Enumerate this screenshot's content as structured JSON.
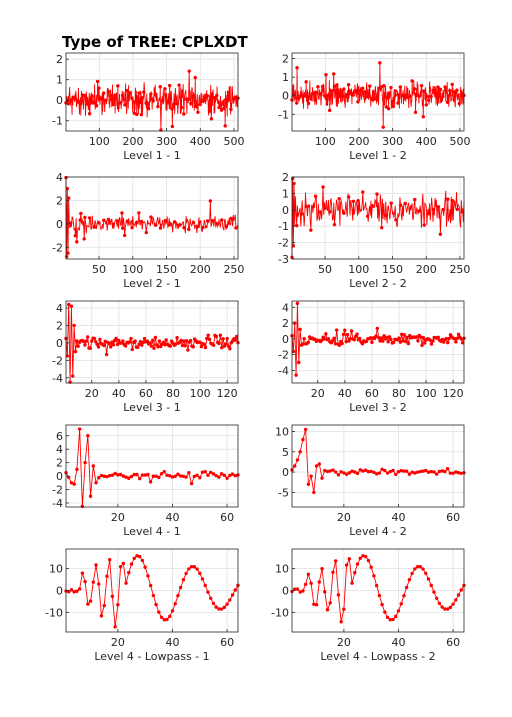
{
  "figure": {
    "title": "Type of TREE: CPLXDT",
    "line_color": "#ff0000",
    "axis_color": "#262626",
    "grid_color": "#e0e0e0"
  },
  "chart_data": [
    {
      "type": "line",
      "xlabel": "Level 1 - 1",
      "xlim": [
        1,
        512
      ],
      "ylim": [
        -1.5,
        2.3
      ],
      "xticks": [
        100,
        200,
        300,
        400,
        500
      ],
      "yticks": [
        -1,
        0,
        1,
        2
      ],
      "n": 512,
      "amp": 0.55,
      "seed": 11,
      "grid": true
    },
    {
      "type": "line",
      "xlabel": "Level 1 - 2",
      "xlim": [
        1,
        512
      ],
      "ylim": [
        -1.9,
        2.3
      ],
      "xticks": [
        100,
        200,
        300,
        400,
        500
      ],
      "yticks": [
        -1,
        0,
        1,
        2
      ],
      "n": 512,
      "amp": 0.55,
      "seed": 12,
      "grid": true
    },
    {
      "type": "line",
      "xlabel": "Level 2 - 1",
      "xlim": [
        1,
        256
      ],
      "ylim": [
        -3,
        4
      ],
      "xticks": [
        50,
        100,
        150,
        200,
        250
      ],
      "yticks": [
        -2,
        0,
        2,
        4
      ],
      "n": 256,
      "amp": 0.55,
      "seed": 21,
      "burst": [
        4.0,
        -2.8,
        3.0,
        -2.5,
        2.2
      ],
      "grid": true
    },
    {
      "type": "line",
      "xlabel": "Level 2 - 2",
      "xlim": [
        1,
        256
      ],
      "ylim": [
        -3,
        2
      ],
      "xticks": [
        50,
        100,
        150,
        200,
        250
      ],
      "yticks": [
        -3,
        -2,
        -1,
        0,
        1,
        2
      ],
      "n": 256,
      "amp": 0.8,
      "seed": 22,
      "burst": [
        -2.9,
        1.9,
        -2.2,
        1.6,
        -1.0
      ],
      "grid": true
    },
    {
      "type": "line",
      "xlabel": "Level 3 - 1",
      "xlim": [
        1,
        128
      ],
      "ylim": [
        -4.6,
        4.8
      ],
      "xticks": [
        20,
        40,
        60,
        80,
        100,
        120
      ],
      "yticks": [
        -4,
        -2,
        0,
        2,
        4
      ],
      "n": 128,
      "amp": 0.55,
      "seed": 31,
      "burst": [
        0.5,
        -1.5,
        4.4,
        -4.5,
        4.2,
        -3.8,
        2.0,
        -1.0
      ],
      "grid": true
    },
    {
      "type": "line",
      "xlabel": "Level 3 - 2",
      "xlim": [
        1,
        128
      ],
      "ylim": [
        -5.6,
        4.8
      ],
      "xticks": [
        20,
        40,
        60,
        80,
        100,
        120
      ],
      "yticks": [
        -4,
        -2,
        0,
        2,
        4
      ],
      "n": 128,
      "amp": 0.55,
      "seed": 32,
      "burst": [
        0.4,
        -1.6,
        2.0,
        -4.6,
        4.5,
        -3.0,
        1.2,
        -0.8
      ],
      "grid": true
    },
    {
      "type": "line",
      "xlabel": "Level 4 - 1",
      "xlim": [
        1,
        64
      ],
      "ylim": [
        -4.6,
        7.6
      ],
      "xticks": [
        20,
        40,
        60
      ],
      "yticks": [
        -4,
        -2,
        0,
        2,
        4,
        6
      ],
      "n": 64,
      "amp": 0.5,
      "seed": 41,
      "burst": [
        0.5,
        -0.2,
        -1.0,
        -1.2,
        1.0,
        7.0,
        -4.5,
        2.0,
        6.0,
        -3.0,
        1.5,
        -1.0
      ],
      "grid": true
    },
    {
      "type": "line",
      "xlabel": "Level 4 - 2",
      "xlim": [
        1,
        64
      ],
      "ylim": [
        -8.6,
        11.6
      ],
      "xticks": [
        20,
        40,
        60
      ],
      "yticks": [
        -5,
        0,
        5,
        10
      ],
      "n": 64,
      "amp": 0.6,
      "seed": 42,
      "burst": [
        0.5,
        1.5,
        3.0,
        5.0,
        8.0,
        10.5,
        -3.0,
        -1.0,
        -5.0,
        1.5,
        2.0,
        -1.5
      ],
      "grid": true
    },
    {
      "type": "line",
      "xlabel": "Level 4 - Lowpass - 1",
      "xlim": [
        1,
        64
      ],
      "ylim": [
        -19,
        19
      ],
      "xticks": [
        20,
        40,
        60
      ],
      "yticks": [
        -10,
        0,
        10
      ],
      "n": 64,
      "kind": "lowpass",
      "seed": 51,
      "grid": true
    },
    {
      "type": "line",
      "xlabel": "Level 4 - Lowpass - 2",
      "xlim": [
        1,
        64
      ],
      "ylim": [
        -19,
        19
      ],
      "xticks": [
        20,
        40,
        60
      ],
      "yticks": [
        -10,
        0,
        10
      ],
      "n": 64,
      "kind": "lowpass",
      "seed": 52,
      "grid": true
    }
  ]
}
